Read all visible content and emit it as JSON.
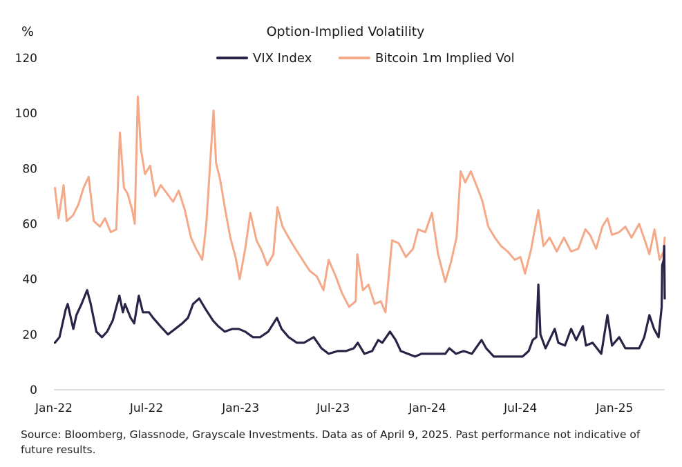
{
  "chart_data": {
    "type": "line",
    "title": "Option-Implied Volatility",
    "ylabel": "%",
    "ylim": [
      0,
      120
    ],
    "yticks": [
      "0",
      "20",
      "40",
      "60",
      "80",
      "100",
      "120"
    ],
    "xlim": [
      "2022-01-01",
      "2025-04-09"
    ],
    "xticks": [
      {
        "date": "2022-01-01",
        "label": "Jan-22"
      },
      {
        "date": "2022-07-01",
        "label": "Jul-22"
      },
      {
        "date": "2023-01-01",
        "label": "Jan-23"
      },
      {
        "date": "2023-07-01",
        "label": "Jul-23"
      },
      {
        "date": "2024-01-01",
        "label": "Jan-24"
      },
      {
        "date": "2024-07-01",
        "label": "Jul-24"
      },
      {
        "date": "2025-01-01",
        "label": "Jan-25"
      }
    ],
    "grid": false,
    "legend": "top-center",
    "series": [
      {
        "name": "VIX Index",
        "color": "#2b2347",
        "points": [
          [
            "2022-01-03",
            17
          ],
          [
            "2022-01-12",
            19
          ],
          [
            "2022-01-24",
            29
          ],
          [
            "2022-01-28",
            31
          ],
          [
            "2022-02-08",
            22
          ],
          [
            "2022-02-14",
            27
          ],
          [
            "2022-02-24",
            31
          ],
          [
            "2022-03-07",
            36
          ],
          [
            "2022-03-14",
            31
          ],
          [
            "2022-03-25",
            21
          ],
          [
            "2022-04-05",
            19
          ],
          [
            "2022-04-15",
            21
          ],
          [
            "2022-04-26",
            25
          ],
          [
            "2022-05-09",
            34
          ],
          [
            "2022-05-16",
            28
          ],
          [
            "2022-05-20",
            31
          ],
          [
            "2022-05-31",
            26
          ],
          [
            "2022-06-07",
            24
          ],
          [
            "2022-06-16",
            34
          ],
          [
            "2022-06-24",
            28
          ],
          [
            "2022-07-06",
            28
          ],
          [
            "2022-07-14",
            26
          ],
          [
            "2022-07-28",
            23
          ],
          [
            "2022-08-12",
            20
          ],
          [
            "2022-08-26",
            22
          ],
          [
            "2022-09-09",
            24
          ],
          [
            "2022-09-20",
            26
          ],
          [
            "2022-09-30",
            31
          ],
          [
            "2022-10-12",
            33
          ],
          [
            "2022-10-25",
            29
          ],
          [
            "2022-11-08",
            25
          ],
          [
            "2022-11-18",
            23
          ],
          [
            "2022-12-01",
            21
          ],
          [
            "2022-12-16",
            22
          ],
          [
            "2022-12-28",
            22
          ],
          [
            "2023-01-10",
            21
          ],
          [
            "2023-01-25",
            19
          ],
          [
            "2023-02-08",
            19
          ],
          [
            "2023-02-24",
            21
          ],
          [
            "2023-03-13",
            26
          ],
          [
            "2023-03-22",
            22
          ],
          [
            "2023-04-05",
            19
          ],
          [
            "2023-04-21",
            17
          ],
          [
            "2023-05-05",
            17
          ],
          [
            "2023-05-24",
            19
          ],
          [
            "2023-06-08",
            15
          ],
          [
            "2023-06-22",
            13
          ],
          [
            "2023-07-10",
            14
          ],
          [
            "2023-07-26",
            14
          ],
          [
            "2023-08-10",
            15
          ],
          [
            "2023-08-18",
            17
          ],
          [
            "2023-08-31",
            13
          ],
          [
            "2023-09-15",
            14
          ],
          [
            "2023-09-27",
            18
          ],
          [
            "2023-10-05",
            17
          ],
          [
            "2023-10-20",
            21
          ],
          [
            "2023-10-31",
            18
          ],
          [
            "2023-11-10",
            14
          ],
          [
            "2023-11-24",
            13
          ],
          [
            "2023-12-08",
            12
          ],
          [
            "2023-12-20",
            13
          ],
          [
            "2024-01-05",
            13
          ],
          [
            "2024-01-22",
            13
          ],
          [
            "2024-02-05",
            13
          ],
          [
            "2024-02-13",
            15
          ],
          [
            "2024-02-26",
            13
          ],
          [
            "2024-03-12",
            14
          ],
          [
            "2024-03-28",
            13
          ],
          [
            "2024-04-16",
            18
          ],
          [
            "2024-04-25",
            15
          ],
          [
            "2024-05-10",
            12
          ],
          [
            "2024-05-24",
            12
          ],
          [
            "2024-06-07",
            12
          ],
          [
            "2024-06-21",
            12
          ],
          [
            "2024-07-05",
            12
          ],
          [
            "2024-07-17",
            14
          ],
          [
            "2024-07-25",
            18
          ],
          [
            "2024-08-01",
            19
          ],
          [
            "2024-08-05",
            38
          ],
          [
            "2024-08-09",
            20
          ],
          [
            "2024-08-19",
            15
          ],
          [
            "2024-09-06",
            22
          ],
          [
            "2024-09-13",
            17
          ],
          [
            "2024-09-26",
            16
          ],
          [
            "2024-10-08",
            22
          ],
          [
            "2024-10-18",
            18
          ],
          [
            "2024-10-31",
            23
          ],
          [
            "2024-11-06",
            16
          ],
          [
            "2024-11-19",
            17
          ],
          [
            "2024-12-06",
            13
          ],
          [
            "2024-12-18",
            27
          ],
          [
            "2024-12-27",
            16
          ],
          [
            "2025-01-10",
            19
          ],
          [
            "2025-01-22",
            15
          ],
          [
            "2025-02-05",
            15
          ],
          [
            "2025-02-18",
            15
          ],
          [
            "2025-02-28",
            19
          ],
          [
            "2025-03-10",
            27
          ],
          [
            "2025-03-19",
            22
          ],
          [
            "2025-03-28",
            19
          ],
          [
            "2025-04-03",
            30
          ],
          [
            "2025-04-04",
            45
          ],
          [
            "2025-04-07",
            47
          ],
          [
            "2025-04-08",
            52
          ],
          [
            "2025-04-09",
            33
          ]
        ]
      },
      {
        "name": "Bitcoin 1m Implied Vol",
        "color": "#f4a988",
        "points": [
          [
            "2022-01-03",
            73
          ],
          [
            "2022-01-10",
            62
          ],
          [
            "2022-01-20",
            74
          ],
          [
            "2022-01-26",
            61
          ],
          [
            "2022-02-07",
            63
          ],
          [
            "2022-02-18",
            67
          ],
          [
            "2022-02-28",
            73
          ],
          [
            "2022-03-10",
            77
          ],
          [
            "2022-03-20",
            61
          ],
          [
            "2022-04-01",
            59
          ],
          [
            "2022-04-11",
            62
          ],
          [
            "2022-04-22",
            57
          ],
          [
            "2022-05-03",
            58
          ],
          [
            "2022-05-10",
            93
          ],
          [
            "2022-05-18",
            73
          ],
          [
            "2022-05-25",
            71
          ],
          [
            "2022-06-03",
            65
          ],
          [
            "2022-06-08",
            60
          ],
          [
            "2022-06-14",
            106
          ],
          [
            "2022-06-20",
            87
          ],
          [
            "2022-06-28",
            78
          ],
          [
            "2022-07-08",
            81
          ],
          [
            "2022-07-18",
            70
          ],
          [
            "2022-07-29",
            74
          ],
          [
            "2022-08-10",
            71
          ],
          [
            "2022-08-22",
            68
          ],
          [
            "2022-09-02",
            72
          ],
          [
            "2022-09-14",
            65
          ],
          [
            "2022-09-26",
            55
          ],
          [
            "2022-10-06",
            51
          ],
          [
            "2022-10-18",
            47
          ],
          [
            "2022-10-26",
            60
          ],
          [
            "2022-11-09",
            101
          ],
          [
            "2022-11-14",
            82
          ],
          [
            "2022-11-22",
            76
          ],
          [
            "2022-12-02",
            65
          ],
          [
            "2022-12-12",
            55
          ],
          [
            "2022-12-22",
            48
          ],
          [
            "2022-12-30",
            40
          ],
          [
            "2023-01-10",
            51
          ],
          [
            "2023-01-20",
            64
          ],
          [
            "2023-02-01",
            54
          ],
          [
            "2023-02-12",
            50
          ],
          [
            "2023-02-22",
            45
          ],
          [
            "2023-03-06",
            49
          ],
          [
            "2023-03-14",
            66
          ],
          [
            "2023-03-24",
            59
          ],
          [
            "2023-04-05",
            55
          ],
          [
            "2023-04-18",
            51
          ],
          [
            "2023-05-02",
            47
          ],
          [
            "2023-05-16",
            43
          ],
          [
            "2023-05-30",
            41
          ],
          [
            "2023-06-12",
            36
          ],
          [
            "2023-06-22",
            47
          ],
          [
            "2023-07-06",
            41
          ],
          [
            "2023-07-18",
            35
          ],
          [
            "2023-08-01",
            30
          ],
          [
            "2023-08-14",
            32
          ],
          [
            "2023-08-17",
            49
          ],
          [
            "2023-08-28",
            36
          ],
          [
            "2023-09-08",
            38
          ],
          [
            "2023-09-20",
            31
          ],
          [
            "2023-10-02",
            32
          ],
          [
            "2023-10-11",
            28
          ],
          [
            "2023-10-24",
            54
          ],
          [
            "2023-11-06",
            53
          ],
          [
            "2023-11-20",
            48
          ],
          [
            "2023-12-04",
            51
          ],
          [
            "2023-12-14",
            58
          ],
          [
            "2023-12-28",
            57
          ],
          [
            "2024-01-10",
            64
          ],
          [
            "2024-01-22",
            49
          ],
          [
            "2024-02-05",
            39
          ],
          [
            "2024-02-16",
            46
          ],
          [
            "2024-02-27",
            55
          ],
          [
            "2024-03-06",
            79
          ],
          [
            "2024-03-15",
            75
          ],
          [
            "2024-03-26",
            79
          ],
          [
            "2024-04-08",
            73
          ],
          [
            "2024-04-18",
            68
          ],
          [
            "2024-04-29",
            59
          ],
          [
            "2024-05-12",
            55
          ],
          [
            "2024-05-24",
            52
          ],
          [
            "2024-06-06",
            50
          ],
          [
            "2024-06-20",
            47
          ],
          [
            "2024-07-01",
            48
          ],
          [
            "2024-07-10",
            42
          ],
          [
            "2024-07-22",
            51
          ],
          [
            "2024-08-05",
            65
          ],
          [
            "2024-08-15",
            52
          ],
          [
            "2024-08-27",
            55
          ],
          [
            "2024-09-10",
            50
          ],
          [
            "2024-09-24",
            55
          ],
          [
            "2024-10-08",
            50
          ],
          [
            "2024-10-22",
            51
          ],
          [
            "2024-11-05",
            58
          ],
          [
            "2024-11-14",
            56
          ],
          [
            "2024-11-26",
            51
          ],
          [
            "2024-12-08",
            59
          ],
          [
            "2024-12-18",
            62
          ],
          [
            "2024-12-27",
            56
          ],
          [
            "2025-01-10",
            57
          ],
          [
            "2025-01-22",
            59
          ],
          [
            "2025-02-03",
            55
          ],
          [
            "2025-02-18",
            60
          ],
          [
            "2025-03-03",
            53
          ],
          [
            "2025-03-10",
            49
          ],
          [
            "2025-03-20",
            58
          ],
          [
            "2025-03-30",
            47
          ],
          [
            "2025-04-07",
            50
          ],
          [
            "2025-04-09",
            55
          ]
        ]
      }
    ]
  },
  "source_note": "Source: Bloomberg, Glassnode, Grayscale Investments. Data as of April 9, 2025. Past performance not indicative of future results."
}
